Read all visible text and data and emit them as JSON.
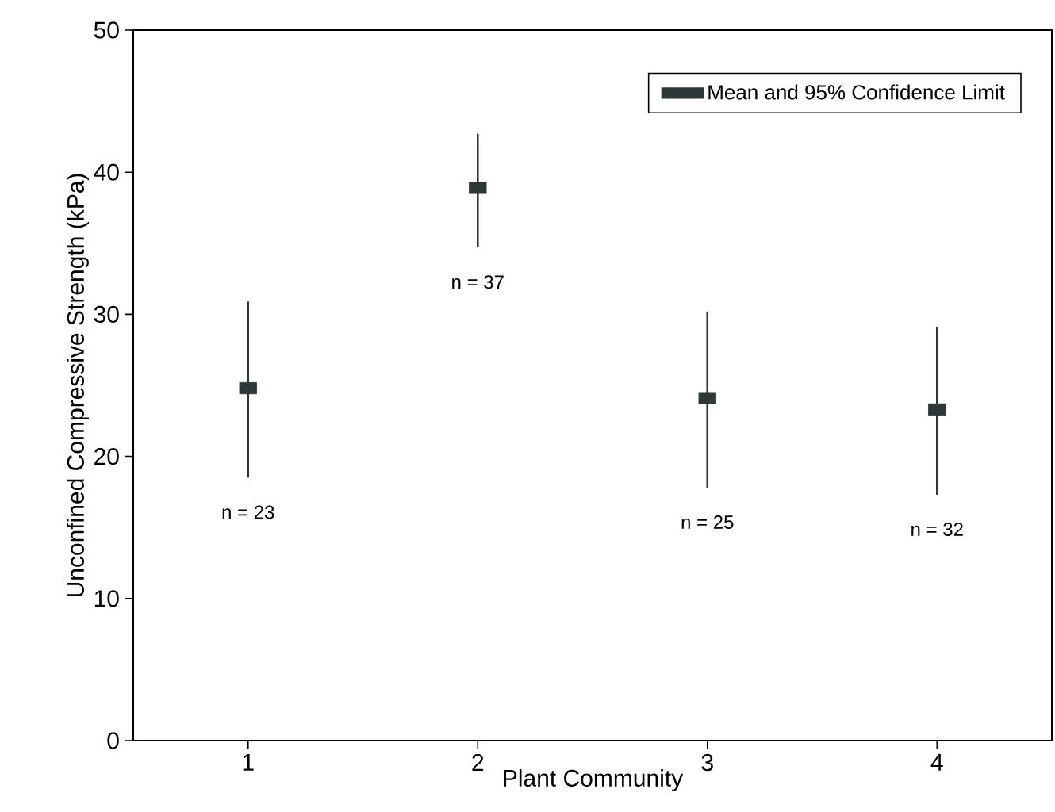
{
  "chart_data": {
    "type": "scatter",
    "xlabel": "Plant Community",
    "ylabel": "Unconfined Compressive Strength (kPa)",
    "xlim": [
      0.5,
      4.5
    ],
    "xticks": [
      1,
      2,
      3,
      4
    ],
    "ylim": [
      0,
      50
    ],
    "yticks": [
      0,
      10,
      20,
      30,
      40,
      50
    ],
    "series": [
      {
        "name": "Mean and 95% Confidence Limit",
        "color": "#2f3838",
        "x": [
          1,
          2,
          3,
          4
        ],
        "values": [
          24.8,
          38.9,
          24.1,
          23.3
        ],
        "errors": [
          [
            18.5,
            30.9
          ],
          [
            34.7,
            42.7
          ],
          [
            17.8,
            30.2
          ],
          [
            17.3,
            29.1
          ]
        ]
      }
    ],
    "marker": "square",
    "legend": "top right",
    "grid": false,
    "annotations": [
      "n = 23",
      "n = 37",
      "n = 25",
      "n = 32"
    ]
  }
}
